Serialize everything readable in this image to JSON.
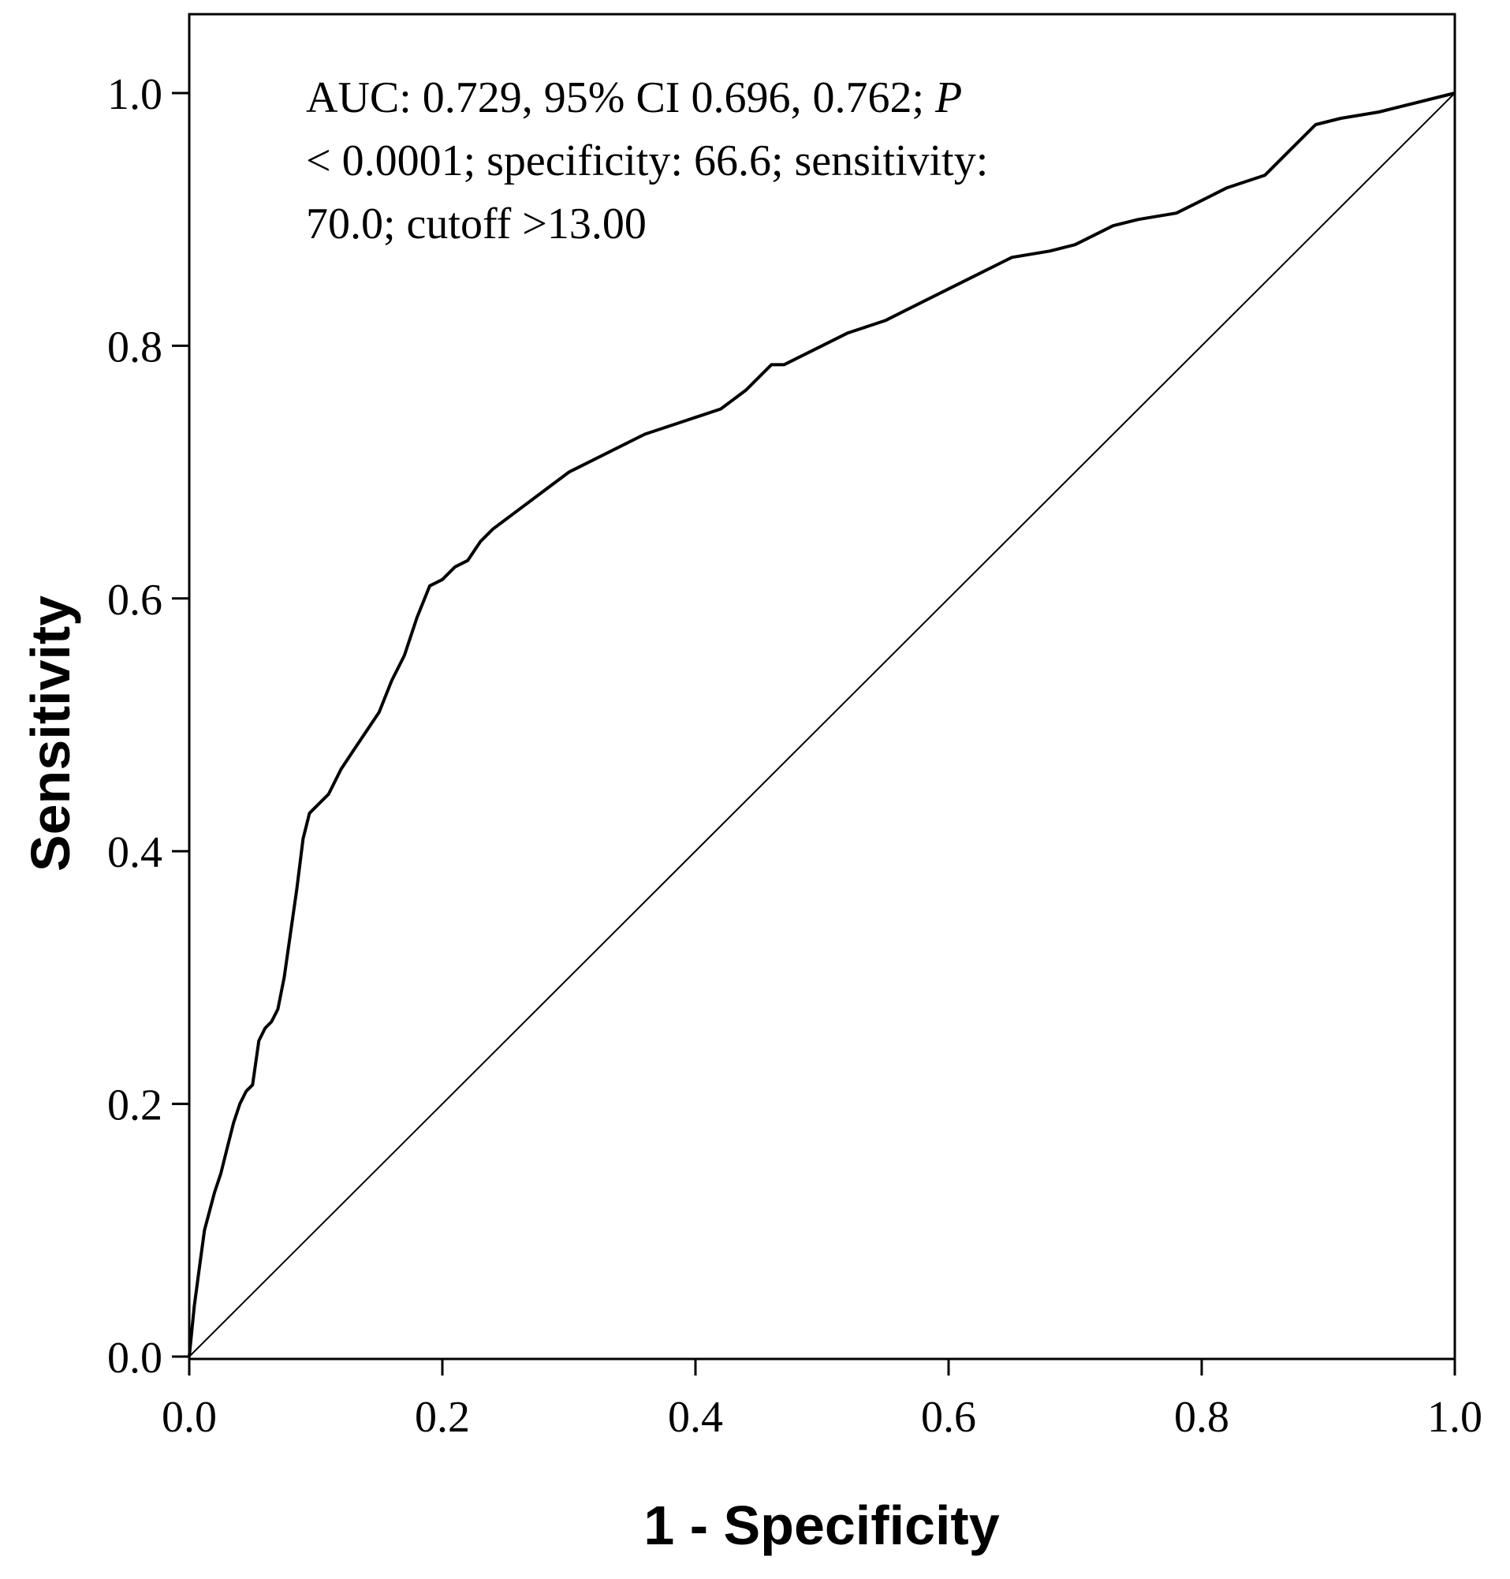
{
  "chart_data": {
    "type": "line",
    "title": "",
    "xlabel": "1 - Specificity",
    "ylabel": "Sensitivity",
    "xlim": [
      0,
      1
    ],
    "ylim": [
      0,
      1.05
    ],
    "xticks": [
      "0.0",
      "0.2",
      "0.4",
      "0.6",
      "0.8",
      "1.0"
    ],
    "yticks": [
      "0.0",
      "0.2",
      "0.4",
      "0.6",
      "0.8",
      "1.0"
    ],
    "grid": false,
    "annotation": {
      "line1_prefix": "AUC: 0.729, 95% CI 0.696, 0.762; ",
      "line1_italic": "P",
      "line2": "< 0.0001; specificity: 66.6; sensitivity:",
      "line3": "70.0; cutoff >13.00"
    },
    "series": [
      {
        "name": "ROC curve",
        "x": [
          0,
          0.004,
          0.008,
          0.012,
          0.016,
          0.02,
          0.025,
          0.03,
          0.035,
          0.04,
          0.045,
          0.05,
          0.055,
          0.06,
          0.065,
          0.07,
          0.075,
          0.08,
          0.085,
          0.09,
          0.095,
          0.1,
          0.105,
          0.11,
          0.115,
          0.12,
          0.13,
          0.14,
          0.15,
          0.16,
          0.17,
          0.18,
          0.19,
          0.2,
          0.21,
          0.22,
          0.23,
          0.24,
          0.26,
          0.28,
          0.3,
          0.33,
          0.36,
          0.39,
          0.42,
          0.44,
          0.46,
          0.47,
          0.5,
          0.52,
          0.55,
          0.58,
          0.6,
          0.62,
          0.65,
          0.68,
          0.7,
          0.73,
          0.75,
          0.78,
          0.8,
          0.82,
          0.85,
          0.87,
          0.89,
          0.91,
          0.94,
          0.96,
          0.98,
          1.0
        ],
        "y": [
          0,
          0.04,
          0.07,
          0.1,
          0.115,
          0.13,
          0.145,
          0.165,
          0.185,
          0.2,
          0.21,
          0.215,
          0.25,
          0.26,
          0.265,
          0.275,
          0.3,
          0.335,
          0.37,
          0.41,
          0.43,
          0.435,
          0.44,
          0.445,
          0.455,
          0.465,
          0.48,
          0.495,
          0.51,
          0.535,
          0.555,
          0.585,
          0.61,
          0.615,
          0.625,
          0.63,
          0.645,
          0.655,
          0.67,
          0.685,
          0.7,
          0.715,
          0.73,
          0.74,
          0.75,
          0.765,
          0.785,
          0.785,
          0.8,
          0.81,
          0.82,
          0.835,
          0.845,
          0.855,
          0.87,
          0.875,
          0.88,
          0.895,
          0.9,
          0.905,
          0.915,
          0.925,
          0.935,
          0.955,
          0.975,
          0.98,
          0.985,
          0.99,
          0.995,
          1.0
        ]
      },
      {
        "name": "Reference line",
        "x": [
          0,
          1
        ],
        "y": [
          0,
          1
        ]
      }
    ]
  }
}
